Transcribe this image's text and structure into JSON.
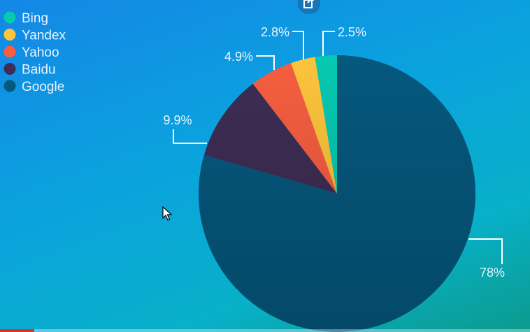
{
  "chart_data": {
    "type": "pie",
    "title": "",
    "legend_position": "top-left",
    "slices": [
      {
        "label": "Google",
        "value": 78,
        "display": "78%",
        "color": "#05587e"
      },
      {
        "label": "Baidu",
        "value": 9.9,
        "display": "9.9%",
        "color": "#3e2d54"
      },
      {
        "label": "Yahoo",
        "value": 4.9,
        "display": "4.9%",
        "color": "#f65e40"
      },
      {
        "label": "Yandex",
        "value": 2.8,
        "display": "2.8%",
        "color": "#fdc43c"
      },
      {
        "label": "Bing",
        "value": 2.5,
        "display": "2.5%",
        "color": "#06c9b0"
      }
    ],
    "legend_order": [
      "Bing",
      "Yandex",
      "Yahoo",
      "Baidu",
      "Google"
    ]
  },
  "player": {
    "progress": 0.065,
    "progress_color": "#e52d27",
    "share_icon": "share-icon",
    "cursor_icon": "mouse-pointer-icon"
  }
}
